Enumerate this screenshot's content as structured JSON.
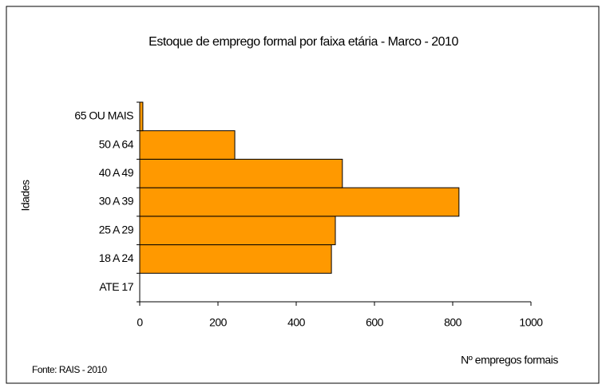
{
  "chart_data": {
    "type": "barh",
    "title": "Estoque de emprego formal por faixa etária - Marco - 2010",
    "y_label": "Idades",
    "x_label": "Nº empregos formais",
    "source": "Fonte: RAIS - 2010",
    "categories": [
      "ATE 17",
      "18 A 24",
      "25 A 29",
      "30 A 39",
      "40 A 49",
      "50 A 64",
      "65 OU MAIS"
    ],
    "values": [
      0,
      490,
      500,
      816,
      518,
      243,
      8
    ],
    "color": "#ff9900",
    "xlim": [
      0,
      1000
    ],
    "xticks": [
      0,
      200,
      400,
      600,
      800,
      1000
    ],
    "grid": false
  }
}
